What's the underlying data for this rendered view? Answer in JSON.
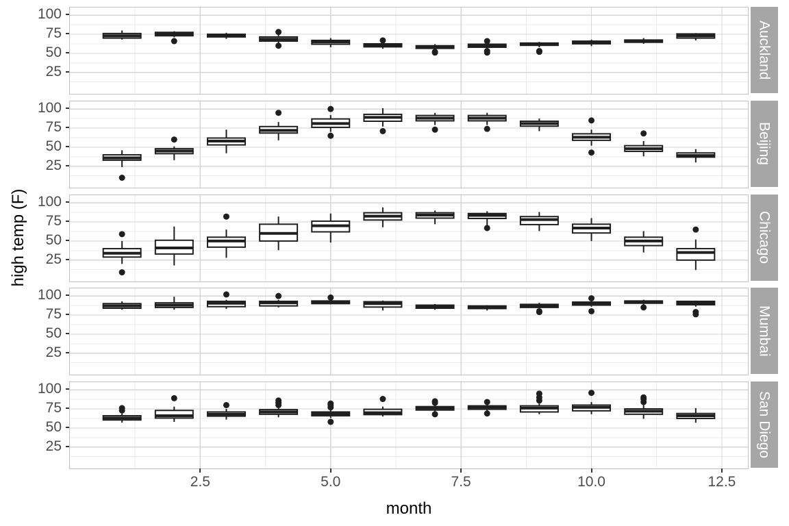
{
  "chart_data": {
    "type": "boxplot",
    "title": "",
    "xlabel": "month",
    "ylabel": "high temp (F)",
    "facet_variable": "city",
    "x_domain": [
      0,
      13
    ],
    "y_domain": [
      -3,
      110
    ],
    "x_ticks": [
      2.5,
      5.0,
      7.5,
      10.0,
      12.5
    ],
    "x_tick_labels": [
      "2.5",
      "5.0",
      "7.5",
      "10.0",
      "12.5"
    ],
    "y_ticks": [
      100,
      75,
      50,
      25
    ],
    "y_tick_labels": [
      "100",
      "75",
      "50",
      "25"
    ],
    "grid": true,
    "legend": "none",
    "box_format": [
      "month",
      "whisker_low",
      "q1",
      "median",
      "q3",
      "whisker_high",
      "outliers"
    ],
    "facets": [
      {
        "label": "Auckland",
        "boxes": [
          [
            1,
            68,
            70,
            73,
            76,
            80,
            []
          ],
          [
            2,
            71,
            73,
            75.5,
            77.5,
            79,
            [
              66
            ]
          ],
          [
            3,
            69,
            71.5,
            73,
            75,
            77,
            []
          ],
          [
            4,
            63,
            66,
            68.5,
            71.5,
            74,
            [
              78,
              60
            ]
          ],
          [
            5,
            58,
            62,
            65,
            67,
            70,
            []
          ],
          [
            6,
            56,
            58.5,
            60.5,
            62.5,
            64,
            [
              67
            ]
          ],
          [
            7,
            54,
            56.5,
            58,
            60,
            62,
            [
              52,
              51
            ]
          ],
          [
            8,
            55,
            58,
            60,
            62,
            64,
            [
              66,
              53,
              51
            ]
          ],
          [
            9,
            58,
            60.5,
            62,
            63.5,
            65,
            [
              53,
              52
            ]
          ],
          [
            10,
            59.5,
            62.5,
            64,
            66,
            68,
            []
          ],
          [
            11,
            62.5,
            64.5,
            66,
            67.5,
            70,
            []
          ],
          [
            12,
            67,
            70,
            73,
            75.5,
            76.5,
            []
          ]
        ]
      },
      {
        "label": "Beijing",
        "boxes": [
          [
            1,
            24,
            33,
            36,
            40,
            46,
            [
              10
            ]
          ],
          [
            2,
            33,
            41.5,
            45,
            48,
            51,
            [
              60
            ]
          ],
          [
            3,
            42,
            53,
            58,
            62,
            73,
            []
          ],
          [
            4,
            59,
            68.5,
            72,
            77,
            83,
            [
              95
            ]
          ],
          [
            5,
            70,
            76,
            81,
            87,
            92,
            [
              100,
              65
            ]
          ],
          [
            6,
            77,
            84,
            89,
            93,
            101,
            [
              71
            ]
          ],
          [
            7,
            79,
            84.5,
            88,
            91.5,
            95,
            [
              73
            ]
          ],
          [
            8,
            79,
            84.5,
            88,
            91.5,
            95,
            [
              74
            ]
          ],
          [
            9,
            71,
            77.5,
            81,
            84,
            87.5,
            []
          ],
          [
            10,
            52,
            59,
            63,
            67.5,
            73,
            [
              85,
              43
            ]
          ],
          [
            11,
            38,
            44.5,
            48,
            52,
            58,
            [
              68
            ]
          ],
          [
            12,
            30,
            37,
            39,
            42.5,
            47.5,
            []
          ]
        ]
      },
      {
        "label": "Chicago",
        "boxes": [
          [
            1,
            20,
            29,
            34,
            40,
            50,
            [
              59,
              9
            ]
          ],
          [
            2,
            18,
            33,
            41,
            51,
            69,
            []
          ],
          [
            3,
            28,
            42,
            50,
            55,
            65,
            [
              82
            ]
          ],
          [
            4,
            38,
            50,
            60,
            72,
            82,
            []
          ],
          [
            5,
            48,
            62,
            70,
            76,
            86,
            []
          ],
          [
            6,
            68,
            77.5,
            82.5,
            87,
            94,
            []
          ],
          [
            7,
            72,
            80,
            84,
            87,
            90,
            []
          ],
          [
            8,
            70,
            79.5,
            83.5,
            86,
            89,
            [
              67
            ]
          ],
          [
            9,
            63,
            71.5,
            78,
            82,
            88,
            []
          ],
          [
            10,
            50,
            60.5,
            67,
            72,
            80,
            []
          ],
          [
            11,
            35,
            44,
            50,
            55,
            63,
            []
          ],
          [
            12,
            12,
            25,
            35,
            40,
            52,
            [
              65
            ]
          ]
        ]
      },
      {
        "label": "Mumbai",
        "boxes": [
          [
            1,
            82,
            84,
            87,
            90,
            93,
            []
          ],
          [
            2,
            82,
            85,
            88,
            91,
            99,
            []
          ],
          [
            3,
            83,
            86,
            90.5,
            93,
            95,
            [
              102
            ]
          ],
          [
            4,
            85,
            87,
            91,
            93,
            95,
            [
              100
            ]
          ],
          [
            5,
            89,
            90,
            92,
            93.5,
            95,
            [
              98
            ]
          ],
          [
            6,
            81,
            85.5,
            90,
            92.5,
            94,
            []
          ],
          [
            7,
            82,
            84,
            86,
            88,
            89.5,
            []
          ],
          [
            8,
            81,
            83.5,
            85,
            87,
            88,
            []
          ],
          [
            9,
            84,
            85,
            87,
            89,
            91,
            [
              80,
              79
            ]
          ],
          [
            10,
            86,
            88,
            90.5,
            92,
            94,
            [
              97,
              80
            ]
          ],
          [
            11,
            88,
            90.5,
            92.5,
            93.5,
            95,
            [
              85
            ]
          ],
          [
            12,
            86,
            88.5,
            91,
            93,
            94,
            [
              79,
              76
            ]
          ]
        ]
      },
      {
        "label": "San Diego",
        "boxes": [
          [
            1,
            57,
            60.5,
            63,
            66,
            69,
            [
              76,
              73
            ]
          ],
          [
            2,
            58,
            63,
            66,
            73,
            78,
            [
              89
            ]
          ],
          [
            3,
            61,
            65.5,
            68,
            71,
            75,
            [
              80
            ]
          ],
          [
            4,
            64,
            68,
            71,
            74,
            77,
            [
              86,
              83,
              80
            ]
          ],
          [
            5,
            63,
            66,
            68.5,
            71,
            74,
            [
              58,
              77,
              80,
              82
            ]
          ],
          [
            6,
            65,
            67.5,
            70,
            74.5,
            78,
            [
              88
            ]
          ],
          [
            7,
            70,
            73.5,
            76,
            78,
            80,
            [
              68,
              83,
              85
            ]
          ],
          [
            8,
            71,
            74.5,
            77,
            79,
            81,
            [
              69,
              84
            ]
          ],
          [
            9,
            68,
            71,
            76,
            79,
            82,
            [
              86,
              90,
              95
            ]
          ],
          [
            10,
            68,
            72.5,
            77,
            80,
            84,
            [
              96
            ]
          ],
          [
            11,
            62,
            68,
            72,
            75,
            80,
            [
              84,
              88,
              90
            ]
          ],
          [
            12,
            57,
            62.5,
            66,
            69,
            76,
            []
          ]
        ]
      }
    ],
    "colors": {
      "box_fill": "#ffffff",
      "box_stroke": "#1f1f1f",
      "outlier": "#1f1f1f",
      "strip_fill": "#a6a6a6",
      "strip_text": "#ffffff",
      "grid_major": "#d6d6d6",
      "grid_minor": "#ebebeb",
      "panel_border": "#c3c3c3",
      "tick_label": "#4d4d4d",
      "tick_mark": "#333333",
      "axis_title": "#000000"
    }
  }
}
